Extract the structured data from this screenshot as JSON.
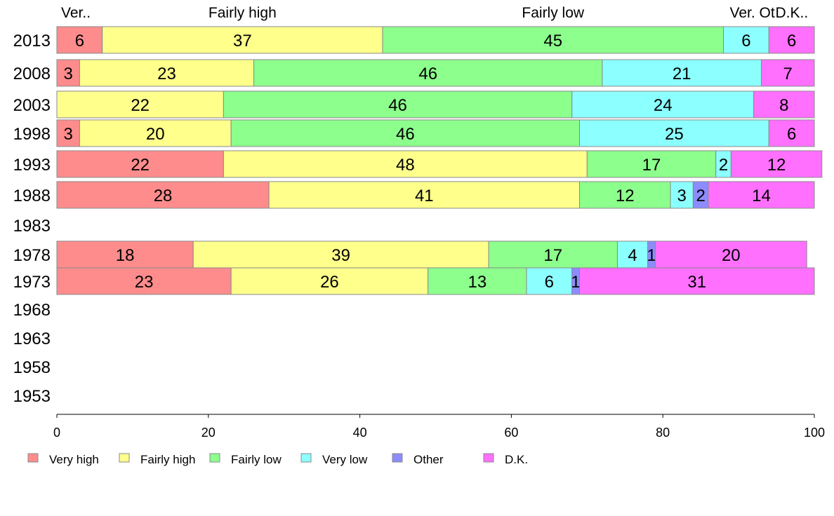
{
  "chart_data": {
    "type": "bar",
    "orientation": "horizontal",
    "stacked": true,
    "title": "",
    "xlabel": "",
    "ylabel": "",
    "xlim": [
      0,
      100
    ],
    "x_ticks": [
      0,
      20,
      40,
      60,
      80,
      100
    ],
    "categories": [
      "2013",
      "2008",
      "2003",
      "1998",
      "1993",
      "1988",
      "1983",
      "1978",
      "1973",
      "1968",
      "1963",
      "1958",
      "1953"
    ],
    "series": [
      {
        "name": "Very high",
        "color": "#ff8c8c",
        "values": [
          6,
          3,
          null,
          3,
          22,
          28,
          null,
          18,
          23,
          null,
          null,
          null,
          null
        ]
      },
      {
        "name": "Fairly high",
        "color": "#ffff8c",
        "values": [
          37,
          23,
          22,
          20,
          48,
          41,
          null,
          39,
          26,
          null,
          null,
          null,
          null
        ]
      },
      {
        "name": "Fairly low",
        "color": "#8cff8c",
        "values": [
          45,
          46,
          46,
          46,
          17,
          12,
          null,
          17,
          13,
          null,
          null,
          null,
          null
        ]
      },
      {
        "name": "Very low",
        "color": "#8cffff",
        "values": [
          6,
          21,
          24,
          25,
          2,
          3,
          null,
          4,
          6,
          null,
          null,
          null,
          null
        ]
      },
      {
        "name": "Other",
        "color": "#8c8cff",
        "values": [
          null,
          null,
          null,
          null,
          null,
          2,
          null,
          1,
          1,
          null,
          null,
          null,
          null
        ]
      },
      {
        "name": "D.K.",
        "color": "#ff70ff",
        "values": [
          6,
          7,
          8,
          6,
          12,
          14,
          null,
          20,
          31,
          null,
          null,
          null,
          null
        ]
      }
    ],
    "top_labels": [
      "Ver..",
      "Fairly high",
      "Fairly low",
      "Ver.",
      "Ot",
      "D.K.."
    ],
    "legend_position": "bottom-left",
    "grid": false
  }
}
